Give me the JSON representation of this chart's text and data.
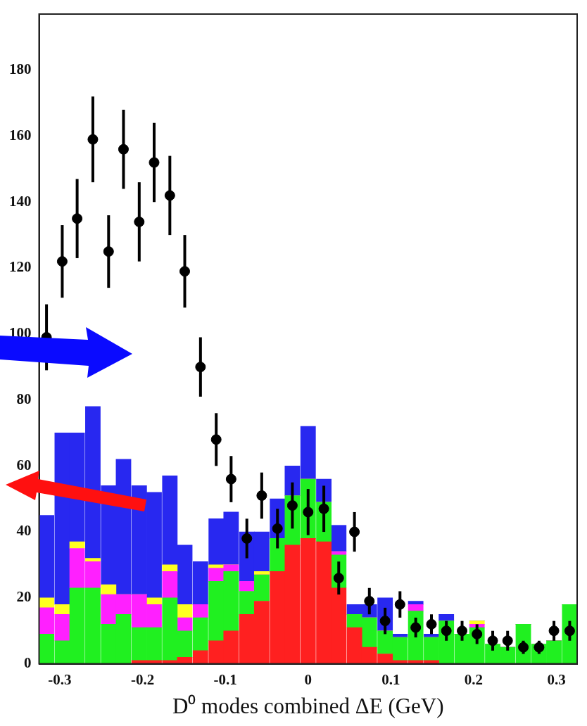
{
  "chart_data": {
    "type": "bar",
    "xlabel": "D⁰ modes combined ΔE (GeV)",
    "stacked": true,
    "grid": false,
    "legend": false,
    "marker": "circle",
    "xlim": [
      -0.325,
      0.325
    ],
    "xticks": [
      -0.3,
      -0.2,
      -0.1,
      0,
      0.1,
      0.2,
      0.3
    ],
    "ylim": [
      0,
      197
    ],
    "yticks": [
      0,
      20,
      40,
      60,
      80,
      100,
      120,
      140,
      160,
      180
    ],
    "x": [
      -0.316,
      -0.297,
      -0.279,
      -0.26,
      -0.241,
      -0.223,
      -0.204,
      -0.186,
      -0.167,
      -0.149,
      -0.13,
      -0.111,
      -0.093,
      -0.074,
      -0.056,
      -0.037,
      -0.019,
      0,
      0.019,
      0.037,
      0.056,
      0.074,
      0.093,
      0.111,
      0.13,
      0.149,
      0.167,
      0.186,
      0.204,
      0.223,
      0.241,
      0.26,
      0.279,
      0.297,
      0.316
    ],
    "series": [
      {
        "color": "#ff2020",
        "values": [
          0,
          0,
          0,
          0,
          0,
          0,
          1,
          1,
          1,
          2,
          4,
          7,
          10,
          15,
          19,
          28,
          36,
          38,
          37,
          23,
          11,
          5,
          3,
          1,
          1,
          1,
          0,
          0,
          0,
          0,
          0,
          0,
          0,
          0,
          0
        ]
      },
      {
        "color": "#20f020",
        "values": [
          9,
          7,
          23,
          23,
          12,
          15,
          10,
          10,
          19,
          8,
          10,
          18,
          18,
          7,
          8,
          10,
          15,
          18,
          12,
          10,
          4,
          9,
          7,
          7,
          15,
          7,
          13,
          9,
          11,
          6,
          5,
          12,
          6,
          7,
          18
        ]
      },
      {
        "color": "#ff20ff",
        "values": [
          8,
          8,
          12,
          8,
          9,
          6,
          10,
          7,
          8,
          4,
          4,
          4,
          2,
          3,
          0,
          0,
          0,
          0,
          0,
          1,
          0,
          0,
          0,
          0,
          2,
          0,
          0,
          0,
          1,
          0,
          0,
          0,
          0,
          0,
          0
        ]
      },
      {
        "color": "#ffff20",
        "values": [
          3,
          3,
          2,
          1,
          3,
          0,
          0,
          2,
          2,
          4,
          0,
          1,
          0,
          0,
          1,
          0,
          0,
          0,
          0,
          0,
          0,
          0,
          0,
          0,
          0,
          0,
          0,
          0,
          1,
          0,
          0,
          0,
          0,
          0,
          0
        ]
      },
      {
        "color": "#2828f0",
        "values": [
          25,
          52,
          33,
          46,
          30,
          41,
          33,
          32,
          27,
          18,
          13,
          14,
          16,
          15,
          12,
          12,
          9,
          16,
          7,
          8,
          3,
          4,
          10,
          1,
          1,
          1,
          2,
          0,
          0,
          0,
          0,
          0,
          0,
          0,
          0
        ]
      },
      {
        "type": "scatter",
        "color": "#000000",
        "x": [
          -0.316,
          -0.297,
          -0.279,
          -0.26,
          -0.241,
          -0.223,
          -0.204,
          -0.186,
          -0.167,
          -0.149,
          -0.13,
          -0.111,
          -0.093,
          -0.074,
          -0.056,
          -0.037,
          -0.019,
          0,
          0.019,
          0.037,
          0.056,
          0.074,
          0.093,
          0.111,
          0.13,
          0.149,
          0.167,
          0.186,
          0.204,
          0.223,
          0.241,
          0.26,
          0.279,
          0.297,
          0.316
        ],
        "values": [
          99,
          122,
          135,
          159,
          125,
          156,
          134,
          152,
          142,
          119,
          90,
          68,
          56,
          38,
          51,
          41,
          48,
          46,
          47,
          26,
          40,
          19,
          13,
          18,
          11,
          12,
          10,
          10,
          9,
          7,
          7,
          5,
          5,
          10,
          10
        ],
        "errors": [
          10,
          11,
          12,
          13,
          11,
          12,
          12,
          12,
          12,
          11,
          9,
          8,
          7,
          6,
          7,
          6,
          7,
          7,
          7,
          5,
          6,
          4,
          4,
          4,
          3,
          3,
          3,
          3,
          3,
          3,
          3,
          2,
          2,
          3,
          3
        ]
      }
    ]
  }
}
